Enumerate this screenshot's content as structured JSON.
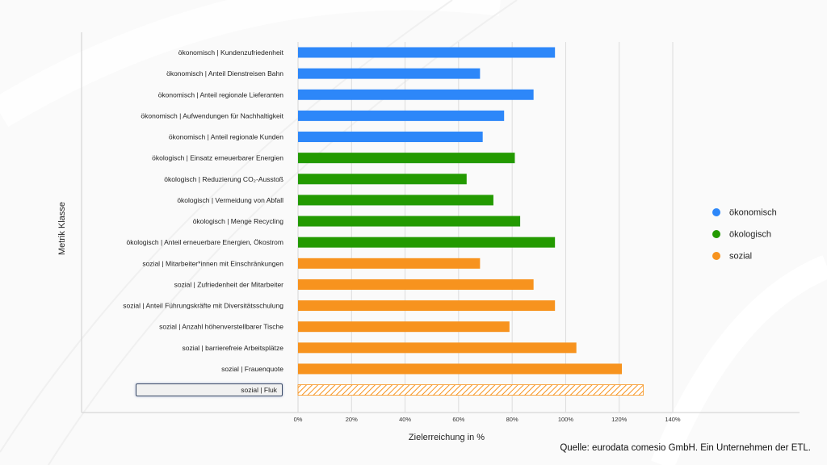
{
  "chart_data": {
    "type": "bar",
    "orientation": "horizontal",
    "title": "",
    "xlabel": "Zielerreichung in %",
    "ylabel": "Metrik Klasse",
    "xlim": [
      0,
      140
    ],
    "xticks": [
      "0%",
      "20%",
      "40%",
      "60%",
      "80%",
      "100%",
      "120%",
      "140%"
    ],
    "grid": true,
    "legend_position": "right",
    "legend": [
      {
        "name": "ökonomisch",
        "color": "#2d87f9"
      },
      {
        "name": "ökologisch",
        "color": "#239a00"
      },
      {
        "name": "sozial",
        "color": "#f7931e"
      }
    ],
    "categories": [
      "ökonomisch | Kundenzufriedenheit",
      "ökonomisch | Anteil Dienstreisen Bahn",
      "ökonomisch | Anteil regionale Lieferanten",
      "ökonomisch | Aufwendungen für Nachhaltigkeit",
      "ökonomisch | Anteil regionale Kunden",
      "ökologisch | Einsatz erneuerbarer Energien",
      "ökologisch | Reduzierung CO₂-Ausstoß",
      "ökologisch | Vermeidung von Abfall",
      "ökologisch | Menge Recycling",
      "ökologisch | Anteil erneuerbare Energien, Ökostrom",
      "sozial | Mitarbeiter*innen mit Einschränkungen",
      "sozial | Zufriedenheit der Mitarbeiter",
      "sozial | Anteil Führungskräfte mit Diversitätsschulung",
      "sozial | Anzahl höhenverstellbarer Tische",
      "sozial | barrierefreie Arbeitsplätze",
      "sozial | Frauenquote",
      "sozial | Fluk"
    ],
    "classes": [
      "ökonomisch",
      "ökonomisch",
      "ökonomisch",
      "ökonomisch",
      "ökonomisch",
      "ökologisch",
      "ökologisch",
      "ökologisch",
      "ökologisch",
      "ökologisch",
      "sozial",
      "sozial",
      "sozial",
      "sozial",
      "sozial",
      "sozial",
      "sozial"
    ],
    "values": [
      96,
      68,
      88,
      77,
      69,
      81,
      63,
      73,
      83,
      96,
      68,
      88,
      96,
      79,
      104,
      121,
      129
    ],
    "hatched_index": 16
  },
  "editing": {
    "value": "sozial | Fluk"
  },
  "source": "Quelle: eurodata comesio GmbH. Ein Unternehmen der ETL."
}
